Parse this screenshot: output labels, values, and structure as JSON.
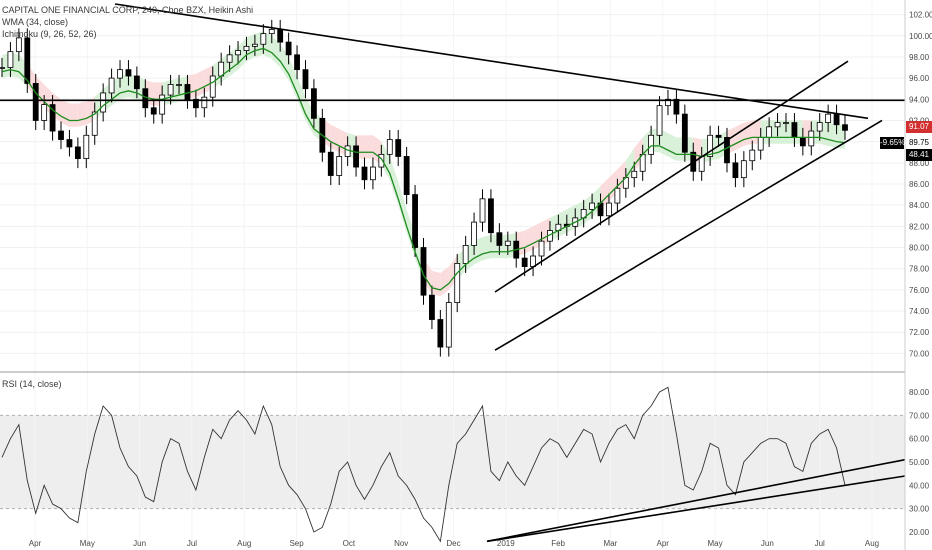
{
  "header": {
    "symbol_line": "CAPITAL ONE FINANCIAL CORP, 240, Cboe BZX, Heikin Ashi",
    "wma_label": "WMA (34, close)",
    "ichimoku_label": "Ichimoku (9, 26, 52, 26)",
    "rsi_label": "RSI (14, close)"
  },
  "price_tags": {
    "last_price": "91.07",
    "change_pct": "-9.65%",
    "level_a": "89.75",
    "level_b": "48.41"
  },
  "colors": {
    "candle": "#000000",
    "wma": "#1e8c1e",
    "cloud_bull": "#d9f0d9",
    "cloud_bear": "#fbdcdc",
    "rsi_band": "#eeeeee",
    "tag_bg": "#d32f2f"
  },
  "chart_data": [
    {
      "type": "line",
      "panel": "price",
      "ylim": [
        69,
        103
      ],
      "y_ticks": [
        "70.00",
        "72.00",
        "74.00",
        "76.00",
        "78.00",
        "80.00",
        "82.00",
        "84.00",
        "86.00",
        "88.00",
        "90.00",
        "92.00",
        "94.00",
        "96.00",
        "98.00",
        "100.00",
        "102.00"
      ],
      "x_ticks": [
        "Apr",
        "May",
        "Jun",
        "Jul",
        "Aug",
        "Sep",
        "Oct",
        "Nov",
        "Dec",
        "2019",
        "Feb",
        "Mar",
        "Apr",
        "May",
        "Jun",
        "Jul",
        "Aug"
      ],
      "series": [
        {
          "values": [
            97.0,
            98.5,
            99.8,
            95.5,
            92.0,
            93.5,
            91.0,
            90.2,
            89.5,
            88.4,
            90.6,
            92.8,
            94.6,
            96.0,
            96.8,
            96.2,
            95.0,
            93.2,
            92.6,
            94.4,
            95.4,
            95.4,
            94.0,
            93.2,
            94.2,
            96.2,
            97.5,
            98.2,
            98.6,
            99.0,
            99.2,
            100.2,
            100.6,
            99.4,
            98.2,
            96.8,
            95.0,
            92.2,
            89.0,
            86.8,
            88.6,
            89.6,
            87.6,
            86.4,
            87.6,
            88.8,
            90.2,
            88.6,
            85.0,
            80.0,
            75.5,
            73.2,
            70.6,
            74.8,
            78.5,
            80.2,
            82.4,
            84.6,
            81.4,
            80.2,
            80.6,
            79.0,
            78.2,
            79.2,
            80.6,
            81.6,
            82.2,
            82.0,
            82.8,
            83.6,
            84.2,
            83.0,
            84.2,
            85.6,
            86.6,
            87.2,
            88.8,
            90.6,
            93.4,
            94.0,
            92.6,
            89.0,
            87.2,
            88.6,
            90.6,
            90.4,
            88.0,
            86.6,
            88.2,
            89.2,
            90.4,
            91.4,
            91.8,
            91.8,
            90.4,
            89.6,
            91.0,
            91.8,
            92.6,
            91.6,
            91.07
          ]
        },
        {
          "name": "WMA (34, close)",
          "values": [
            96.6,
            96.8,
            96.6,
            95.8,
            94.6,
            93.8,
            93.0,
            92.4,
            92.0,
            92.0,
            92.2,
            92.6,
            93.4,
            94.0,
            94.6,
            94.8,
            94.6,
            94.2,
            94.0,
            94.0,
            94.2,
            94.4,
            94.6,
            94.8,
            95.2,
            95.6,
            96.2,
            96.8,
            97.4,
            98.2,
            98.6,
            98.8,
            98.4,
            97.6,
            96.4,
            94.6,
            92.6,
            91.2,
            90.6,
            90.0,
            89.6,
            89.2,
            89.0,
            89.0,
            89.0,
            88.4,
            87.0,
            84.6,
            82.0,
            79.6,
            77.4,
            76.2,
            76.0,
            76.6,
            77.6,
            78.4,
            79.0,
            79.4,
            79.6,
            79.6,
            79.6,
            79.8,
            80.0,
            80.4,
            80.8,
            81.2,
            81.6,
            82.0,
            82.4,
            82.8,
            83.4,
            84.2,
            85.0,
            85.8,
            86.6,
            87.8,
            88.8,
            89.6,
            89.6,
            89.2,
            88.8,
            88.8,
            88.8,
            88.6,
            88.8,
            89.0,
            89.4,
            89.8,
            90.2,
            90.4,
            90.4,
            90.4,
            90.4,
            90.4,
            90.4,
            90.4,
            90.4,
            90.4,
            90.2,
            90.0,
            89.9
          ]
        }
      ]
    },
    {
      "type": "line",
      "panel": "rsi",
      "ylim": [
        14,
        86
      ],
      "y_ticks": [
        "20.00",
        "30.00",
        "40.00",
        "50.00",
        "60.00",
        "70.00",
        "80.00"
      ],
      "overbought": 70,
      "oversold": 30,
      "series": [
        {
          "name": "RSI (14, close)",
          "values": [
            52,
            60,
            66,
            42,
            28,
            40,
            32,
            30,
            26,
            24,
            46,
            62,
            74,
            70,
            56,
            48,
            44,
            35,
            33,
            50,
            60,
            58,
            46,
            38,
            52,
            64,
            60,
            68,
            72,
            68,
            62,
            74,
            66,
            48,
            40,
            36,
            30,
            20,
            22,
            32,
            46,
            50,
            40,
            34,
            40,
            48,
            54,
            44,
            40,
            34,
            26,
            22,
            16,
            40,
            58,
            62,
            68,
            74,
            46,
            42,
            50,
            44,
            40,
            48,
            56,
            60,
            58,
            52,
            58,
            64,
            62,
            50,
            58,
            64,
            66,
            60,
            70,
            74,
            80,
            82,
            62,
            40,
            38,
            46,
            58,
            56,
            40,
            36,
            50,
            54,
            58,
            60,
            60,
            58,
            48,
            46,
            58,
            62,
            64,
            56,
            40
          ]
        }
      ]
    }
  ]
}
